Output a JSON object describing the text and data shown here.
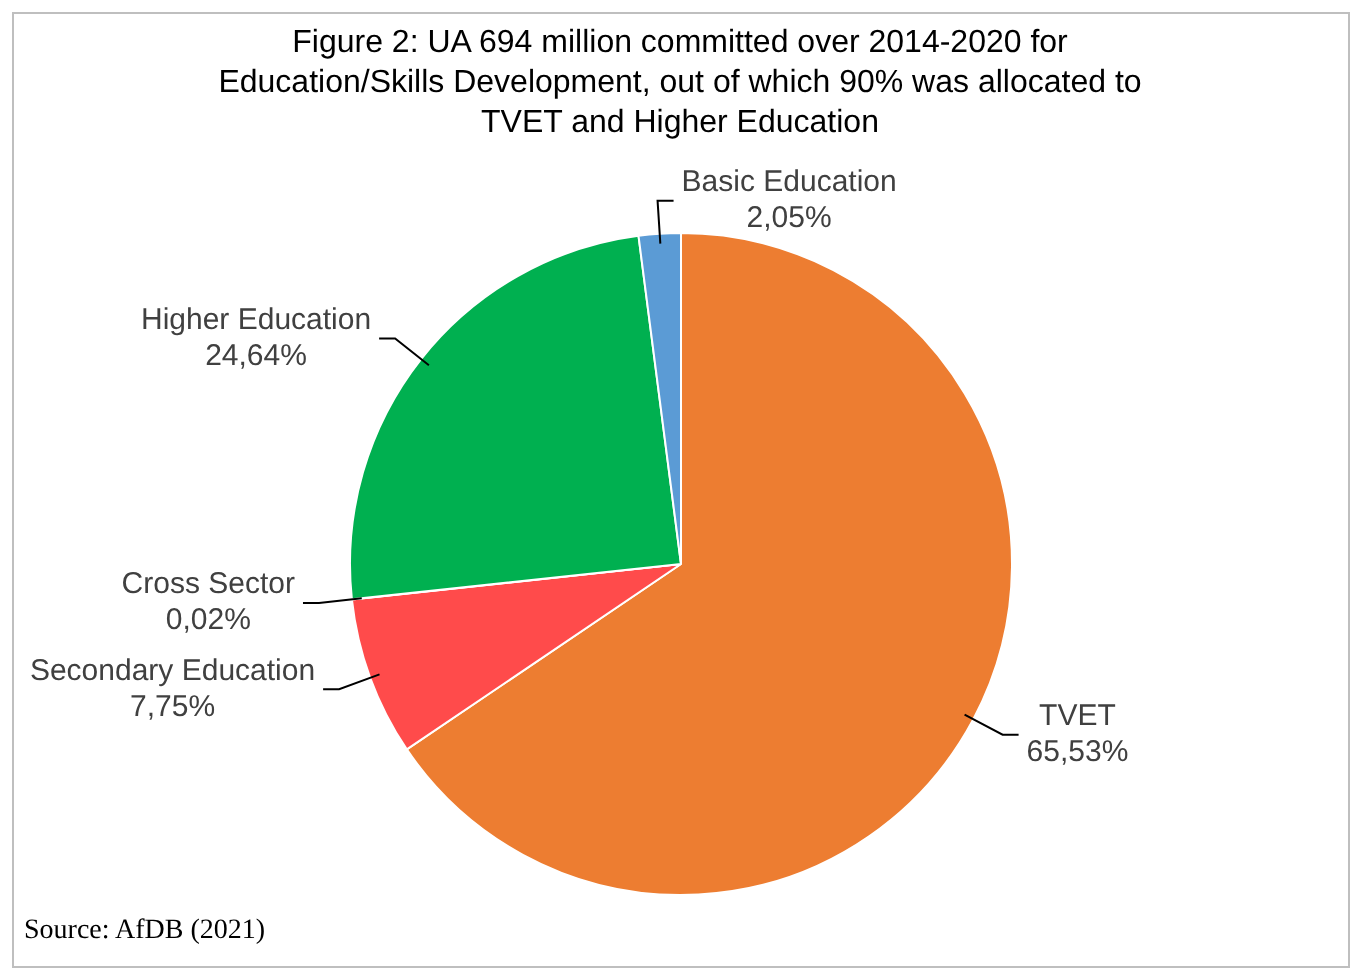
{
  "chart_data": {
    "type": "pie",
    "title": "Figure 2: UA 694 million committed over 2014-2020 for Education/Skills Development, out of which 90% was allocated to TVET and Higher Education",
    "categories": [
      "TVET",
      "Secondary Education",
      "Cross Sector",
      "Higher Education",
      "Basic Education"
    ],
    "values": [
      65.53,
      7.75,
      0.02,
      24.64,
      2.05
    ],
    "value_labels": [
      "65,53%",
      "7,75%",
      "0,02%",
      "24,64%",
      "2,05%"
    ],
    "colors": [
      "#ed7d31",
      "#ff4b4b",
      "#d9d9d9",
      "#00b050",
      "#5b9bd5"
    ],
    "legend": false,
    "annotations": [
      "Source:  AfDB (2021)"
    ]
  }
}
